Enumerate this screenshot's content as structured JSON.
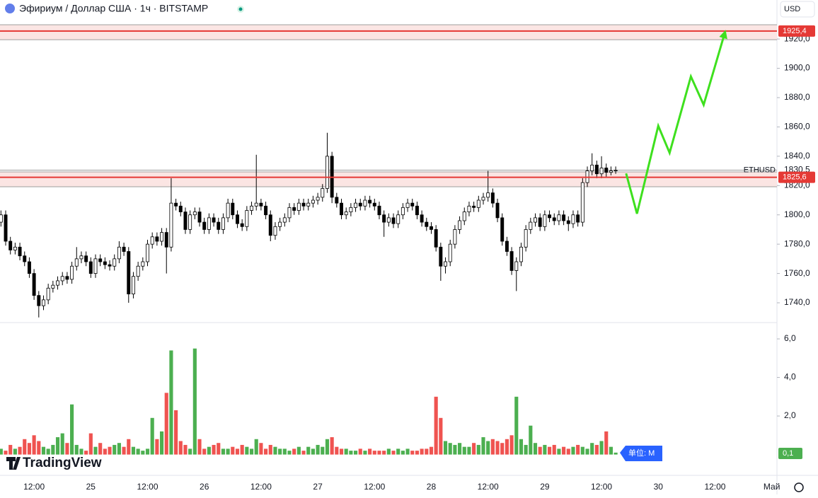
{
  "header": {
    "title": "Эфириум / Доллар США · 1ч · BITSTAMP",
    "currency": "USD",
    "logo": "TradingView"
  },
  "chart_data": {
    "type": "candlestick",
    "ohlc": [
      [
        1795,
        1803,
        1792,
        1800
      ],
      [
        1800,
        1803,
        1779,
        1782
      ],
      [
        1782,
        1785,
        1773,
        1776
      ],
      [
        1776,
        1781,
        1773,
        1778
      ],
      [
        1778,
        1781,
        1769,
        1772
      ],
      [
        1772,
        1775,
        1765,
        1768
      ],
      [
        1768,
        1771,
        1757,
        1760
      ],
      [
        1760,
        1763,
        1742,
        1745
      ],
      [
        1745,
        1748,
        1730,
        1738
      ],
      [
        1738,
        1745,
        1735,
        1742
      ],
      [
        1742,
        1753,
        1739,
        1750
      ],
      [
        1750,
        1755,
        1747,
        1752
      ],
      [
        1752,
        1758,
        1749,
        1755
      ],
      [
        1755,
        1761,
        1752,
        1758
      ],
      [
        1758,
        1761,
        1753,
        1756
      ],
      [
        1756,
        1768,
        1753,
        1765
      ],
      [
        1765,
        1778,
        1762,
        1770
      ],
      [
        1770,
        1775,
        1767,
        1772
      ],
      [
        1772,
        1775,
        1765,
        1768
      ],
      [
        1768,
        1771,
        1757,
        1760
      ],
      [
        1760,
        1773,
        1757,
        1770
      ],
      [
        1770,
        1773,
        1765,
        1768
      ],
      [
        1768,
        1771,
        1763,
        1766
      ],
      [
        1766,
        1769,
        1762,
        1765
      ],
      [
        1765,
        1773,
        1762,
        1770
      ],
      [
        1770,
        1782,
        1767,
        1778
      ],
      [
        1778,
        1781,
        1772,
        1775
      ],
      [
        1775,
        1778,
        1740,
        1746
      ],
      [
        1746,
        1761,
        1743,
        1758
      ],
      [
        1758,
        1768,
        1755,
        1765
      ],
      [
        1765,
        1771,
        1762,
        1768
      ],
      [
        1768,
        1783,
        1765,
        1780
      ],
      [
        1780,
        1788,
        1777,
        1785
      ],
      [
        1785,
        1788,
        1779,
        1782
      ],
      [
        1782,
        1791,
        1779,
        1788
      ],
      [
        1788,
        1791,
        1760,
        1778
      ],
      [
        1778,
        1825,
        1775,
        1808
      ],
      [
        1808,
        1811,
        1803,
        1806
      ],
      [
        1806,
        1809,
        1799,
        1802
      ],
      [
        1802,
        1805,
        1787,
        1790
      ],
      [
        1790,
        1803,
        1787,
        1800
      ],
      [
        1800,
        1805,
        1797,
        1802
      ],
      [
        1802,
        1805,
        1792,
        1795
      ],
      [
        1795,
        1798,
        1787,
        1790
      ],
      [
        1790,
        1801,
        1787,
        1798
      ],
      [
        1798,
        1801,
        1792,
        1795
      ],
      [
        1795,
        1798,
        1787,
        1790
      ],
      [
        1790,
        1801,
        1787,
        1798
      ],
      [
        1798,
        1811,
        1795,
        1808
      ],
      [
        1808,
        1811,
        1797,
        1800
      ],
      [
        1800,
        1803,
        1791,
        1794
      ],
      [
        1794,
        1797,
        1789,
        1792
      ],
      [
        1792,
        1806,
        1789,
        1803
      ],
      [
        1803,
        1809,
        1800,
        1806
      ],
      [
        1806,
        1841,
        1803,
        1808
      ],
      [
        1808,
        1811,
        1803,
        1806
      ],
      [
        1806,
        1809,
        1797,
        1800
      ],
      [
        1800,
        1803,
        1782,
        1786
      ],
      [
        1786,
        1795,
        1783,
        1792
      ],
      [
        1792,
        1798,
        1789,
        1795
      ],
      [
        1795,
        1801,
        1792,
        1798
      ],
      [
        1798,
        1808,
        1795,
        1805
      ],
      [
        1805,
        1808,
        1800,
        1803
      ],
      [
        1803,
        1811,
        1800,
        1808
      ],
      [
        1808,
        1811,
        1803,
        1806
      ],
      [
        1806,
        1811,
        1803,
        1808
      ],
      [
        1808,
        1813,
        1805,
        1810
      ],
      [
        1810,
        1815,
        1807,
        1812
      ],
      [
        1812,
        1821,
        1809,
        1818
      ],
      [
        1818,
        1856,
        1815,
        1840
      ],
      [
        1840,
        1843,
        1808,
        1812
      ],
      [
        1812,
        1815,
        1805,
        1808
      ],
      [
        1808,
        1811,
        1797,
        1800
      ],
      [
        1800,
        1805,
        1797,
        1802
      ],
      [
        1802,
        1808,
        1799,
        1805
      ],
      [
        1805,
        1811,
        1802,
        1808
      ],
      [
        1808,
        1811,
        1803,
        1806
      ],
      [
        1806,
        1813,
        1803,
        1810
      ],
      [
        1810,
        1813,
        1805,
        1808
      ],
      [
        1808,
        1811,
        1803,
        1806
      ],
      [
        1806,
        1809,
        1797,
        1800
      ],
      [
        1800,
        1803,
        1785,
        1795
      ],
      [
        1795,
        1801,
        1792,
        1798
      ],
      [
        1798,
        1801,
        1791,
        1794
      ],
      [
        1794,
        1803,
        1791,
        1800
      ],
      [
        1800,
        1808,
        1797,
        1805
      ],
      [
        1805,
        1811,
        1802,
        1808
      ],
      [
        1808,
        1811,
        1803,
        1806
      ],
      [
        1806,
        1809,
        1797,
        1800
      ],
      [
        1800,
        1803,
        1792,
        1795
      ],
      [
        1795,
        1798,
        1789,
        1792
      ],
      [
        1792,
        1795,
        1787,
        1790
      ],
      [
        1790,
        1793,
        1775,
        1778
      ],
      [
        1778,
        1781,
        1755,
        1765
      ],
      [
        1765,
        1771,
        1760,
        1768
      ],
      [
        1768,
        1783,
        1765,
        1780
      ],
      [
        1780,
        1793,
        1777,
        1790
      ],
      [
        1790,
        1799,
        1787,
        1796
      ],
      [
        1796,
        1805,
        1793,
        1802
      ],
      [
        1802,
        1809,
        1799,
        1806
      ],
      [
        1806,
        1809,
        1802,
        1805
      ],
      [
        1805,
        1813,
        1802,
        1810
      ],
      [
        1810,
        1815,
        1807,
        1812
      ],
      [
        1812,
        1830,
        1809,
        1815
      ],
      [
        1815,
        1818,
        1805,
        1808
      ],
      [
        1808,
        1811,
        1795,
        1798
      ],
      [
        1798,
        1801,
        1779,
        1782
      ],
      [
        1782,
        1785,
        1772,
        1775
      ],
      [
        1775,
        1778,
        1759,
        1762
      ],
      [
        1762,
        1771,
        1748,
        1768
      ],
      [
        1768,
        1781,
        1765,
        1778
      ],
      [
        1778,
        1793,
        1775,
        1790
      ],
      [
        1790,
        1798,
        1787,
        1795
      ],
      [
        1795,
        1801,
        1792,
        1798
      ],
      [
        1798,
        1801,
        1789,
        1792
      ],
      [
        1792,
        1803,
        1789,
        1800
      ],
      [
        1800,
        1803,
        1795,
        1798
      ],
      [
        1798,
        1801,
        1793,
        1796
      ],
      [
        1796,
        1803,
        1793,
        1800
      ],
      [
        1800,
        1803,
        1793,
        1796
      ],
      [
        1796,
        1799,
        1789,
        1794
      ],
      [
        1794,
        1803,
        1791,
        1800
      ],
      [
        1800,
        1803,
        1792,
        1795
      ],
      [
        1795,
        1825,
        1792,
        1822
      ],
      [
        1822,
        1833,
        1819,
        1830
      ],
      [
        1830,
        1842,
        1827,
        1834
      ],
      [
        1834,
        1837,
        1825,
        1828
      ],
      [
        1828,
        1840,
        1825,
        1832
      ],
      [
        1832,
        1835,
        1826,
        1829
      ],
      [
        1829,
        1833,
        1827,
        1830
      ],
      [
        1830,
        1833,
        1828,
        1830.5
      ]
    ],
    "up_color": "#ffffff",
    "down_color": "#000000",
    "wick_color": "#000000",
    "xlim": [
      -0.2,
      164.1
    ],
    "xticks": [
      {
        "value": 7,
        "label": "12:00"
      },
      {
        "value": 19,
        "label": "25"
      },
      {
        "value": 31,
        "label": "12:00"
      },
      {
        "value": 43,
        "label": "26"
      },
      {
        "value": 55,
        "label": "12:00"
      },
      {
        "value": 67,
        "label": "27"
      },
      {
        "value": 79,
        "label": "12:00"
      },
      {
        "value": 91,
        "label": "28"
      },
      {
        "value": 103,
        "label": "12:00"
      },
      {
        "value": 115,
        "label": "29"
      },
      {
        "value": 127,
        "label": "12:00"
      },
      {
        "value": 139,
        "label": "30"
      },
      {
        "value": 151,
        "label": "12:00"
      },
      {
        "value": 163,
        "label": "Май"
      }
    ],
    "ylim": [
      1726.5,
      1946.6
    ],
    "yticks": [
      {
        "value": 1740,
        "label": "1740,0"
      },
      {
        "value": 1760,
        "label": "1760,0"
      },
      {
        "value": 1780,
        "label": "1780,0"
      },
      {
        "value": 1800,
        "label": "1800,0"
      },
      {
        "value": 1820,
        "label": "1820,0"
      },
      {
        "value": 1840,
        "label": "1840,0"
      },
      {
        "value": 1860,
        "label": "1860,0"
      },
      {
        "value": 1880,
        "label": "1880,0"
      },
      {
        "value": 1900,
        "label": "1900,0"
      },
      {
        "value": 1920,
        "label": "1920,0"
      }
    ],
    "last_price": {
      "name": "ETHUSD",
      "value": 1830.5,
      "label": "1830,5"
    },
    "levels": [
      {
        "value": 1925.4,
        "label": "1925,4",
        "band": [
          1919.5,
          1929.7
        ],
        "color": "#e53935"
      },
      {
        "value": 1825.6,
        "label": "1825,6",
        "band": [
          1819.2,
          1829.3
        ],
        "color": "#e53935"
      }
    ],
    "forecast": {
      "color": "#3ee01e",
      "x": [
        132.2,
        134.5,
        139,
        141.4,
        145.9,
        148.6,
        153
      ],
      "values": [
        1828.3,
        1800.8,
        1860.7,
        1842.3,
        1894.4,
        1875.1,
        1923.4
      ]
    },
    "volume": {
      "values": [
        0.3,
        0.2,
        0.5,
        0.3,
        0.4,
        0.8,
        0.6,
        1.0,
        0.7,
        0.4,
        0.3,
        0.5,
        0.9,
        1.1,
        0.6,
        2.6,
        0.5,
        0.3,
        0.2,
        1.1,
        0.4,
        0.6,
        0.3,
        0.4,
        0.5,
        0.6,
        0.4,
        0.8,
        0.4,
        0.3,
        0.2,
        0.3,
        1.9,
        0.8,
        1.2,
        3.2,
        5.4,
        2.3,
        0.7,
        0.5,
        0.3,
        5.5,
        0.8,
        0.3,
        0.4,
        0.5,
        0.6,
        0.3,
        0.3,
        0.4,
        0.3,
        0.5,
        0.4,
        0.3,
        0.8,
        0.6,
        0.3,
        0.5,
        0.4,
        0.3,
        0.3,
        0.2,
        0.3,
        0.4,
        0.2,
        0.4,
        0.3,
        0.5,
        0.4,
        0.8,
        0.9,
        0.4,
        0.3,
        0.3,
        0.2,
        0.2,
        0.3,
        0.2,
        0.3,
        0.2,
        0.2,
        0.2,
        0.3,
        0.2,
        0.3,
        0.2,
        0.3,
        0.2,
        0.2,
        0.3,
        0.3,
        0.4,
        3.0,
        1.9,
        0.7,
        0.6,
        0.5,
        0.6,
        0.4,
        0.4,
        0.6,
        0.5,
        0.9,
        0.7,
        0.8,
        0.7,
        0.6,
        0.8,
        1.0,
        3.0,
        0.8,
        0.5,
        1.5,
        0.6,
        0.4,
        0.5,
        0.4,
        0.5,
        0.3,
        0.4,
        0.3,
        0.4,
        0.5,
        0.4,
        0.3,
        0.6,
        0.5,
        0.7,
        1.2,
        0.4,
        0.1
      ],
      "up_color": "#4caf50",
      "down_color": "#ef5350",
      "ylim": [
        -1.08,
        6.81
      ],
      "yticks": [
        {
          "value": 2,
          "label": "2,0"
        },
        {
          "value": 4,
          "label": "4,0"
        },
        {
          "value": 6,
          "label": "6,0"
        }
      ],
      "last_value_label": "0,1",
      "unit_label": "单位: M"
    }
  }
}
